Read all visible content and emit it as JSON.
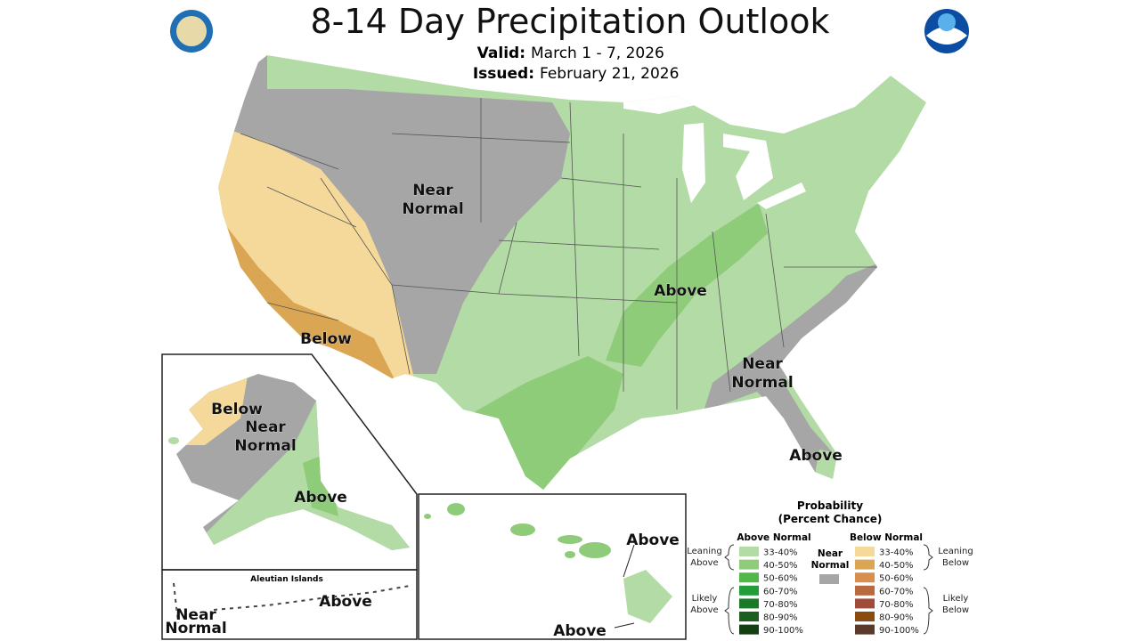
{
  "header": {
    "title": "8-14 Day Precipitation Outlook",
    "valid_label": "Valid:",
    "valid": "March 1 - 7, 2026",
    "issued_label": "Issued:",
    "issued": "February 21, 2026"
  },
  "map_labels": {
    "conus": [
      {
        "lines": [
          "Near",
          "Normal"
        ]
      },
      {
        "lines": [
          "Above"
        ]
      },
      {
        "lines": [
          "Below"
        ]
      },
      {
        "lines": [
          "Near",
          "Normal"
        ]
      },
      {
        "lines": [
          "Above"
        ]
      }
    ],
    "alaska": [
      {
        "lines": [
          "Below"
        ]
      },
      {
        "lines": [
          "Near",
          "Normal"
        ]
      },
      {
        "lines": [
          "Above"
        ]
      }
    ],
    "aleutian_title": "Aleutian Islands",
    "aleutians": [
      {
        "lines": [
          "Above"
        ]
      },
      {
        "lines": [
          "Near",
          "Normal"
        ]
      }
    ],
    "hawaii": [
      {
        "lines": [
          "Above"
        ]
      },
      {
        "lines": [
          "Above"
        ]
      }
    ]
  },
  "legend": {
    "title": "Probability",
    "subtitle": "(Percent Chance)",
    "above_heading": "Above Normal",
    "below_heading": "Below Normal",
    "near": {
      "lines": [
        "Near",
        "Normal"
      ],
      "color": "#a6a6a6"
    },
    "above": [
      {
        "range": "33-40%",
        "color": "#b3dba5"
      },
      {
        "range": "40-50%",
        "color": "#8fcc7a"
      },
      {
        "range": "50-60%",
        "color": "#4fb847"
      },
      {
        "range": "60-70%",
        "color": "#239c3a"
      },
      {
        "range": "70-80%",
        "color": "#1a7a2a"
      },
      {
        "range": "80-90%",
        "color": "#1b5e20"
      },
      {
        "range": "90-100%",
        "color": "#133f12"
      }
    ],
    "below": [
      {
        "range": "33-40%",
        "color": "#f5d99a"
      },
      {
        "range": "40-50%",
        "color": "#dba654"
      },
      {
        "range": "50-60%",
        "color": "#d98e4e"
      },
      {
        "range": "60-70%",
        "color": "#b8693e"
      },
      {
        "range": "70-80%",
        "color": "#a04c3a"
      },
      {
        "range": "80-90%",
        "color": "#8a4a10"
      },
      {
        "range": "90-100%",
        "color": "#5a3a2a"
      }
    ],
    "leaning_above": [
      "Leaning",
      "Above"
    ],
    "likely_above": [
      "Likely",
      "Above"
    ],
    "leaning_below": [
      "Leaning",
      "Below"
    ],
    "likely_below": [
      "Likely",
      "Below"
    ]
  }
}
